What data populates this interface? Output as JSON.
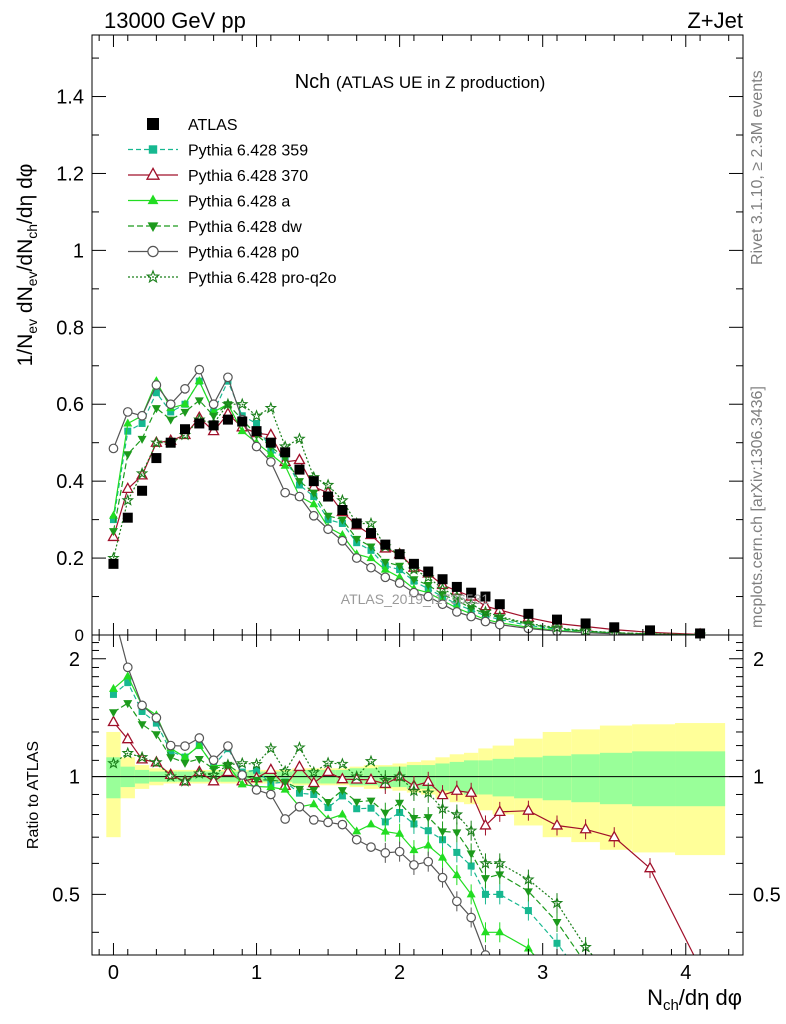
{
  "header": {
    "left": "13000 GeV pp",
    "right": "Z+Jet"
  },
  "side_labels": {
    "rivet": "Rivet 3.1.10, ≥ 2.3M events",
    "mcplots": "mcplots.cern.ch [arXiv:1306.3436]"
  },
  "chart_data": {
    "type": "line",
    "title": "Nch",
    "title_note": "(ATLAS UE in Z production)",
    "watermark": "ATLAS_2019_I1736531",
    "xlabel": "N_ch/dη dφ",
    "ylabel": "1/N_ev dN_ev/dN_ch/dη dφ",
    "ratio_ylabel": "Ratio to ATLAS",
    "xlim": [
      -0.15,
      4.4
    ],
    "ylim": [
      0,
      1.56
    ],
    "ratio_ylim": [
      0.35,
      2.3
    ],
    "x_ticks": [
      0,
      1,
      2,
      3,
      4
    ],
    "y_ticks": [
      0.2,
      0.4,
      0.6,
      0.8,
      1,
      1.2,
      1.4
    ],
    "ratio_y_ticks": [
      0.5,
      1,
      2
    ],
    "legend_position": "top-left",
    "data": {
      "name": "ATLAS",
      "x": [
        0.0,
        0.1,
        0.2,
        0.3,
        0.4,
        0.5,
        0.6,
        0.7,
        0.8,
        0.9,
        1.0,
        1.1,
        1.2,
        1.3,
        1.4,
        1.5,
        1.6,
        1.7,
        1.8,
        1.9,
        2.0,
        2.1,
        2.2,
        2.3,
        2.4,
        2.5,
        2.6,
        2.7,
        2.9,
        3.1,
        3.3,
        3.5,
        3.75,
        4.1
      ],
      "y": [
        0.185,
        0.305,
        0.375,
        0.46,
        0.5,
        0.535,
        0.55,
        0.545,
        0.56,
        0.555,
        0.53,
        0.5,
        0.475,
        0.43,
        0.4,
        0.36,
        0.325,
        0.29,
        0.265,
        0.235,
        0.21,
        0.185,
        0.165,
        0.145,
        0.125,
        0.11,
        0.1,
        0.08,
        0.055,
        0.04,
        0.03,
        0.02,
        0.012,
        0.004
      ],
      "syst_band": [
        0.3,
        0.12,
        0.07,
        0.05,
        0.04,
        0.04,
        0.04,
        0.04,
        0.04,
        0.04,
        0.04,
        0.04,
        0.04,
        0.05,
        0.05,
        0.05,
        0.05,
        0.06,
        0.07,
        0.07,
        0.08,
        0.09,
        0.1,
        0.12,
        0.14,
        0.15,
        0.18,
        0.2,
        0.25,
        0.3,
        0.32,
        0.35,
        0.36,
        0.37
      ],
      "stat_band": [
        0.12,
        0.06,
        0.04,
        0.03,
        0.03,
        0.03,
        0.03,
        0.03,
        0.03,
        0.03,
        0.03,
        0.03,
        0.03,
        0.04,
        0.04,
        0.04,
        0.04,
        0.05,
        0.05,
        0.06,
        0.06,
        0.07,
        0.07,
        0.08,
        0.09,
        0.1,
        0.1,
        0.11,
        0.12,
        0.13,
        0.14,
        0.15,
        0.16,
        0.16
      ]
    },
    "series": [
      {
        "name": "Pythia 6.428 359",
        "color": "#17b890",
        "dash": "5,3",
        "marker": "square-small",
        "x": [
          0.0,
          0.1,
          0.2,
          0.3,
          0.4,
          0.5,
          0.6,
          0.7,
          0.8,
          0.9,
          1.0,
          1.1,
          1.2,
          1.3,
          1.4,
          1.5,
          1.6,
          1.7,
          1.8,
          1.9,
          2.0,
          2.1,
          2.2,
          2.3,
          2.4,
          2.5,
          2.6,
          2.7,
          2.9,
          3.1,
          3.3,
          3.5,
          3.75,
          4.1
        ],
        "y": [
          0.3,
          0.53,
          0.55,
          0.63,
          0.58,
          0.6,
          0.66,
          0.58,
          0.66,
          0.57,
          0.55,
          0.48,
          0.46,
          0.39,
          0.36,
          0.3,
          0.29,
          0.24,
          0.22,
          0.18,
          0.17,
          0.14,
          0.12,
          0.1,
          0.08,
          0.065,
          0.05,
          0.04,
          0.025,
          0.015,
          0.009,
          0.005,
          0.002,
          0.0005
        ]
      },
      {
        "name": "Pythia 6.428 370",
        "color": "#a0102a",
        "dash": "",
        "marker": "triangle-open",
        "x": [
          0.0,
          0.1,
          0.2,
          0.3,
          0.4,
          0.5,
          0.6,
          0.7,
          0.8,
          0.9,
          1.0,
          1.1,
          1.2,
          1.3,
          1.4,
          1.5,
          1.6,
          1.7,
          1.8,
          1.9,
          2.0,
          2.1,
          2.2,
          2.3,
          2.4,
          2.5,
          2.6,
          2.7,
          2.9,
          3.1,
          3.3,
          3.5,
          3.75,
          4.1
        ],
        "y": [
          0.255,
          0.38,
          0.415,
          0.5,
          0.505,
          0.52,
          0.565,
          0.53,
          0.575,
          0.54,
          0.525,
          0.52,
          0.45,
          0.455,
          0.385,
          0.37,
          0.32,
          0.285,
          0.26,
          0.225,
          0.21,
          0.175,
          0.16,
          0.13,
          0.115,
          0.1,
          0.075,
          0.065,
          0.045,
          0.03,
          0.022,
          0.014,
          0.007,
          0.0013
        ]
      },
      {
        "name": "Pythia 6.428 a",
        "color": "#22dd22",
        "dash": "",
        "marker": "triangle-filled",
        "x": [
          0.0,
          0.1,
          0.2,
          0.3,
          0.4,
          0.5,
          0.6,
          0.7,
          0.8,
          0.9,
          1.0,
          1.1,
          1.2,
          1.3,
          1.4,
          1.5,
          1.6,
          1.7,
          1.8,
          1.9,
          2.0,
          2.1,
          2.2,
          2.3,
          2.4,
          2.5,
          2.6,
          2.7,
          2.9,
          3.1,
          3.3,
          3.5,
          3.75,
          4.1
        ],
        "y": [
          0.31,
          0.55,
          0.57,
          0.66,
          0.59,
          0.6,
          0.66,
          0.58,
          0.6,
          0.53,
          0.5,
          0.47,
          0.44,
          0.36,
          0.34,
          0.28,
          0.26,
          0.21,
          0.2,
          0.17,
          0.15,
          0.12,
          0.11,
          0.09,
          0.07,
          0.055,
          0.04,
          0.032,
          0.02,
          0.012,
          0.007,
          0.004,
          0.0015,
          0.0003
        ]
      },
      {
        "name": "Pythia 6.428 dw",
        "color": "#1c9a1c",
        "dash": "6,3",
        "marker": "triangle-down",
        "x": [
          0.0,
          0.1,
          0.2,
          0.3,
          0.4,
          0.5,
          0.6,
          0.7,
          0.8,
          0.9,
          1.0,
          1.1,
          1.2,
          1.3,
          1.4,
          1.5,
          1.6,
          1.7,
          1.8,
          1.9,
          2.0,
          2.1,
          2.2,
          2.3,
          2.4,
          2.5,
          2.6,
          2.7,
          2.9,
          3.1,
          3.3,
          3.5,
          3.75,
          4.1
        ],
        "y": [
          0.27,
          0.47,
          0.51,
          0.59,
          0.56,
          0.58,
          0.61,
          0.57,
          0.6,
          0.56,
          0.52,
          0.49,
          0.46,
          0.4,
          0.37,
          0.31,
          0.3,
          0.25,
          0.23,
          0.19,
          0.18,
          0.145,
          0.13,
          0.105,
          0.09,
          0.07,
          0.055,
          0.045,
          0.028,
          0.017,
          0.01,
          0.006,
          0.0025,
          0.0005
        ]
      },
      {
        "name": "Pythia 6.428 p0",
        "color": "#555555",
        "dash": "",
        "marker": "circle-open",
        "x": [
          0.0,
          0.1,
          0.2,
          0.3,
          0.4,
          0.5,
          0.6,
          0.7,
          0.8,
          0.9,
          1.0,
          1.1,
          1.2,
          1.3,
          1.4,
          1.5,
          1.6,
          1.7,
          1.8,
          1.9,
          2.0,
          2.1,
          2.2,
          2.3,
          2.4,
          2.5,
          2.6,
          2.7,
          2.9,
          3.1,
          3.3,
          3.5,
          3.75,
          4.1
        ],
        "y": [
          0.485,
          0.58,
          0.57,
          0.65,
          0.6,
          0.64,
          0.69,
          0.6,
          0.67,
          0.56,
          0.49,
          0.45,
          0.37,
          0.36,
          0.31,
          0.275,
          0.245,
          0.2,
          0.175,
          0.15,
          0.135,
          0.11,
          0.1,
          0.08,
          0.06,
          0.048,
          0.035,
          0.027,
          0.017,
          0.01,
          0.006,
          0.003,
          0.001,
          0.0002
        ]
      },
      {
        "name": "Pythia 6.428 pro-q2o",
        "color": "#1a7f1a",
        "dash": "2,2",
        "marker": "star",
        "x": [
          0.0,
          0.1,
          0.2,
          0.3,
          0.4,
          0.5,
          0.6,
          0.7,
          0.8,
          0.9,
          1.0,
          1.1,
          1.2,
          1.3,
          1.4,
          1.5,
          1.6,
          1.7,
          1.8,
          1.9,
          2.0,
          2.1,
          2.2,
          2.3,
          2.4,
          2.5,
          2.6,
          2.7,
          2.9,
          3.1,
          3.3,
          3.5,
          3.75,
          4.1
        ],
        "y": [
          0.2,
          0.35,
          0.42,
          0.5,
          0.5,
          0.52,
          0.56,
          0.55,
          0.6,
          0.6,
          0.57,
          0.59,
          0.49,
          0.51,
          0.41,
          0.39,
          0.35,
          0.29,
          0.29,
          0.23,
          0.21,
          0.17,
          0.15,
          0.12,
          0.1,
          0.08,
          0.06,
          0.048,
          0.03,
          0.019,
          0.011,
          0.006,
          0.003,
          0.0006
        ]
      }
    ]
  }
}
